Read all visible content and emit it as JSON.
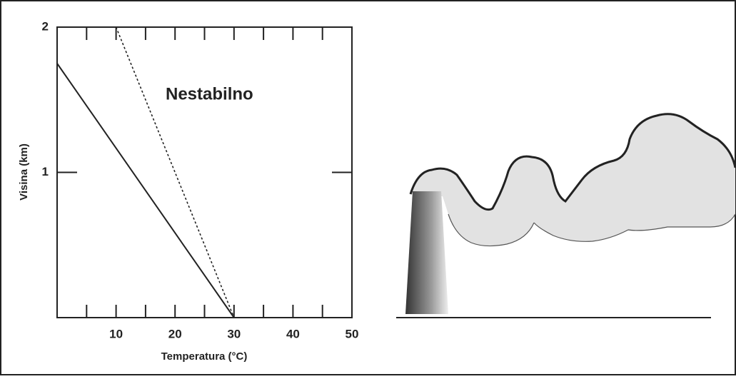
{
  "chart_data": {
    "type": "line",
    "annotation": "Nestabilno",
    "xlabel": "Temperatura (°C)",
    "ylabel": "Visina (km)",
    "series": [
      {
        "color": "#222222",
        "dash": false,
        "x": [
          0,
          30
        ],
        "values": [
          1.75,
          0
        ]
      },
      {
        "color": "#222222",
        "dash": true,
        "x": [
          10,
          30
        ],
        "values": [
          2,
          0
        ]
      }
    ],
    "xlim": [
      0,
      50
    ],
    "xticks": [
      10,
      20,
      30,
      40,
      50
    ],
    "minor_xticks": [
      5,
      15,
      25,
      35,
      45
    ],
    "ylim": [
      0,
      2
    ],
    "yticks": [
      1,
      2
    ]
  }
}
